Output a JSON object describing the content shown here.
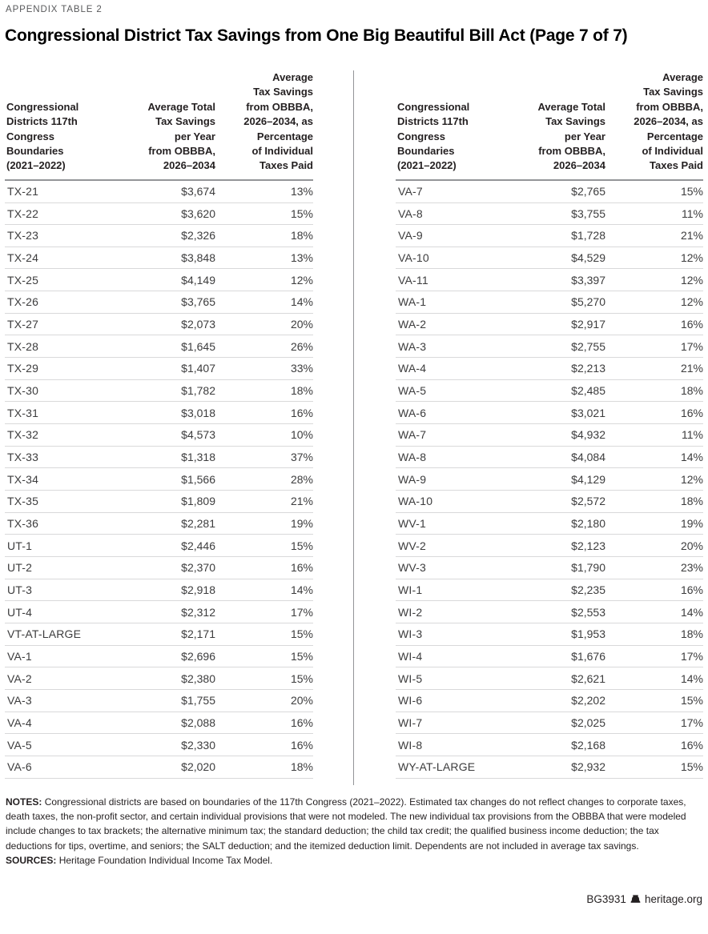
{
  "eyebrow": "APPENDIX TABLE 2",
  "title": "Congressional District Tax Savings from One Big Beautiful Bill Act (Page 7 of 7)",
  "columns": [
    "Congressional\nDistricts 117th\nCongress\nBoundaries\n(2021–2022)",
    "Average Total\nTax Savings\nper Year\nfrom OBBBA,\n2026–2034",
    "Average\nTax Savings\nfrom OBBBA,\n2026–2034, as\nPercentage\nof Individual\nTaxes Paid"
  ],
  "tables": [
    {
      "rows": [
        {
          "district": "TX-21",
          "savings": "$3,674",
          "pct": "13%"
        },
        {
          "district": "TX-22",
          "savings": "$3,620",
          "pct": "15%"
        },
        {
          "district": "TX-23",
          "savings": "$2,326",
          "pct": "18%"
        },
        {
          "district": "TX-24",
          "savings": "$3,848",
          "pct": "13%"
        },
        {
          "district": "TX-25",
          "savings": "$4,149",
          "pct": "12%"
        },
        {
          "district": "TX-26",
          "savings": "$3,765",
          "pct": "14%"
        },
        {
          "district": "TX-27",
          "savings": "$2,073",
          "pct": "20%"
        },
        {
          "district": "TX-28",
          "savings": "$1,645",
          "pct": "26%"
        },
        {
          "district": "TX-29",
          "savings": "$1,407",
          "pct": "33%"
        },
        {
          "district": "TX-30",
          "savings": "$1,782",
          "pct": "18%"
        },
        {
          "district": "TX-31",
          "savings": "$3,018",
          "pct": "16%"
        },
        {
          "district": "TX-32",
          "savings": "$4,573",
          "pct": "10%"
        },
        {
          "district": "TX-33",
          "savings": "$1,318",
          "pct": "37%"
        },
        {
          "district": "TX-34",
          "savings": "$1,566",
          "pct": "28%"
        },
        {
          "district": "TX-35",
          "savings": "$1,809",
          "pct": "21%"
        },
        {
          "district": "TX-36",
          "savings": "$2,281",
          "pct": "19%"
        },
        {
          "district": "UT-1",
          "savings": "$2,446",
          "pct": "15%"
        },
        {
          "district": "UT-2",
          "savings": "$2,370",
          "pct": "16%"
        },
        {
          "district": "UT-3",
          "savings": "$2,918",
          "pct": "14%"
        },
        {
          "district": "UT-4",
          "savings": "$2,312",
          "pct": "17%"
        },
        {
          "district": "VT-AT-LARGE",
          "savings": "$2,171",
          "pct": "15%"
        },
        {
          "district": "VA-1",
          "savings": "$2,696",
          "pct": "15%"
        },
        {
          "district": "VA-2",
          "savings": "$2,380",
          "pct": "15%"
        },
        {
          "district": "VA-3",
          "savings": "$1,755",
          "pct": "20%"
        },
        {
          "district": "VA-4",
          "savings": "$2,088",
          "pct": "16%"
        },
        {
          "district": "VA-5",
          "savings": "$2,330",
          "pct": "16%"
        },
        {
          "district": "VA-6",
          "savings": "$2,020",
          "pct": "18%"
        }
      ]
    },
    {
      "rows": [
        {
          "district": "VA-7",
          "savings": "$2,765",
          "pct": "15%"
        },
        {
          "district": "VA-8",
          "savings": "$3,755",
          "pct": "11%"
        },
        {
          "district": "VA-9",
          "savings": "$1,728",
          "pct": "21%"
        },
        {
          "district": "VA-10",
          "savings": "$4,529",
          "pct": "12%"
        },
        {
          "district": "VA-11",
          "savings": "$3,397",
          "pct": "12%"
        },
        {
          "district": "WA-1",
          "savings": "$5,270",
          "pct": "12%"
        },
        {
          "district": "WA-2",
          "savings": "$2,917",
          "pct": "16%"
        },
        {
          "district": "WA-3",
          "savings": "$2,755",
          "pct": "17%"
        },
        {
          "district": "WA-4",
          "savings": "$2,213",
          "pct": "21%"
        },
        {
          "district": "WA-5",
          "savings": "$2,485",
          "pct": "18%"
        },
        {
          "district": "WA-6",
          "savings": "$3,021",
          "pct": "16%"
        },
        {
          "district": "WA-7",
          "savings": "$4,932",
          "pct": "11%"
        },
        {
          "district": "WA-8",
          "savings": "$4,084",
          "pct": "14%"
        },
        {
          "district": "WA-9",
          "savings": "$4,129",
          "pct": "12%"
        },
        {
          "district": "WA-10",
          "savings": "$2,572",
          "pct": "18%"
        },
        {
          "district": "WV-1",
          "savings": "$2,180",
          "pct": "19%"
        },
        {
          "district": "WV-2",
          "savings": "$2,123",
          "pct": "20%"
        },
        {
          "district": "WV-3",
          "savings": "$1,790",
          "pct": "23%"
        },
        {
          "district": "WI-1",
          "savings": "$2,235",
          "pct": "16%"
        },
        {
          "district": "WI-2",
          "savings": "$2,553",
          "pct": "14%"
        },
        {
          "district": "WI-3",
          "savings": "$1,953",
          "pct": "18%"
        },
        {
          "district": "WI-4",
          "savings": "$1,676",
          "pct": "17%"
        },
        {
          "district": "WI-5",
          "savings": "$2,621",
          "pct": "14%"
        },
        {
          "district": "WI-6",
          "savings": "$2,202",
          "pct": "15%"
        },
        {
          "district": "WI-7",
          "savings": "$2,025",
          "pct": "17%"
        },
        {
          "district": "WI-8",
          "savings": "$2,168",
          "pct": "16%"
        },
        {
          "district": "WY-AT-LARGE",
          "savings": "$2,932",
          "pct": "15%"
        }
      ]
    }
  ],
  "notes": {
    "label": "NOTES:",
    "text": "Congressional districts are based on boundaries of the 117th Congress (2021–2022). Estimated tax changes do not reflect changes to corporate taxes, death taxes, the non-profit sector, and certain individual provisions that were not modeled. The new individual tax provisions from the OBBBA that were modeled include changes to tax brackets; the alternative minimum tax; the standard deduction; the child tax credit; the qualified business income deduction; the tax deductions for tips, overtime, and seniors; the SALT deduction; and the itemized deduction limit. Dependents are not included in average tax savings."
  },
  "sources": {
    "label": "SOURCES:",
    "text": "Heritage Foundation Individual Income Tax Model."
  },
  "footer": {
    "doc_id": "BG3931",
    "site": "heritage.org",
    "logo": "liberty-bell-icon"
  },
  "colors": {
    "text": "#231f20",
    "eyebrow": "#58595b",
    "header_rule": "#939598",
    "row_rule": "#d9d9da"
  }
}
